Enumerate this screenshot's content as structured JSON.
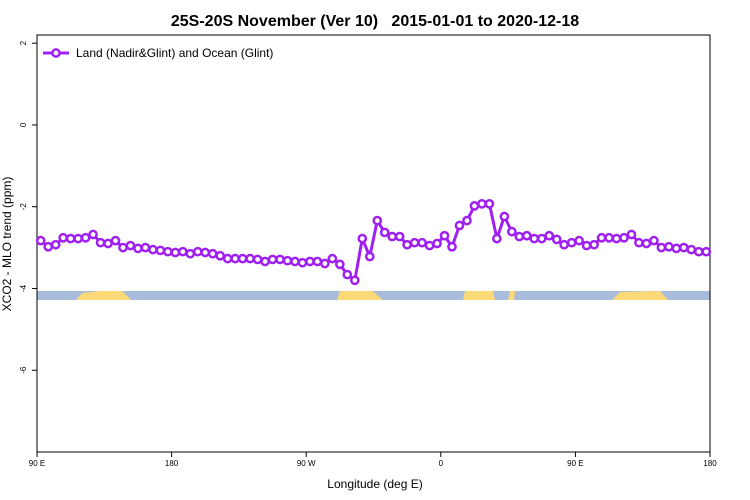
{
  "chart_data": {
    "type": "line",
    "title": "25S-20S November (Ver 10)   2015-01-01 to 2020-12-18",
    "x_label": "Longitude (deg E)",
    "y_label": "XCO2 - MLO trend (ppm)",
    "x": [
      92.5,
      97.5,
      102.5,
      107.5,
      112.5,
      117.5,
      122.5,
      127.5,
      132.5,
      137.5,
      142.5,
      147.5,
      152.5,
      157.5,
      162.5,
      167.5,
      172.5,
      177.5,
      182.5,
      187.5,
      192.5,
      197.5,
      202.5,
      207.5,
      212.5,
      217.5,
      222.5,
      227.5,
      232.5,
      237.5,
      242.5,
      247.5,
      252.5,
      257.5,
      262.5,
      267.5,
      272.5,
      277.5,
      282.5,
      287.5,
      292.5,
      297.5,
      302.5,
      307.5,
      312.5,
      317.5,
      322.5,
      327.5,
      332.5,
      337.5,
      342.5,
      347.5,
      352.5,
      357.5,
      362.5,
      367.5,
      372.5,
      377.5,
      382.5,
      387.5,
      392.5,
      397.5,
      402.5,
      407.5,
      412.5,
      417.5,
      422.5,
      427.5,
      432.5,
      437.5,
      442.5,
      447.5,
      452.5,
      457.5,
      462.5,
      467.5,
      472.5,
      477.5,
      482.5,
      487.5,
      492.5,
      497.5,
      502.5,
      507.5,
      512.5,
      517.5,
      522.5,
      527.5,
      532.5,
      537.5
    ],
    "series": [
      {
        "name": "Land (Nadir&Glint) and Ocean (Glint)",
        "color": "#a020f0",
        "values": [
          -2.83,
          -2.98,
          -2.93,
          -2.76,
          -2.78,
          -2.78,
          -2.76,
          -2.68,
          -2.88,
          -2.9,
          -2.83,
          -3.0,
          -2.95,
          -3.02,
          -3.0,
          -3.05,
          -3.07,
          -3.1,
          -3.12,
          -3.1,
          -3.15,
          -3.1,
          -3.12,
          -3.15,
          -3.2,
          -3.27,
          -3.27,
          -3.27,
          -3.27,
          -3.29,
          -3.34,
          -3.29,
          -3.29,
          -3.32,
          -3.34,
          -3.37,
          -3.34,
          -3.34,
          -3.39,
          -3.27,
          -3.41,
          -3.66,
          -3.8,
          -2.78,
          -3.22,
          -2.34,
          -2.63,
          -2.73,
          -2.73,
          -2.93,
          -2.88,
          -2.88,
          -2.95,
          -2.9,
          -2.71,
          -2.98,
          -2.46,
          -2.34,
          -1.98,
          -1.93,
          -1.93,
          -2.78,
          -2.24,
          -2.61,
          -2.73,
          -2.71,
          -2.78,
          -2.78,
          -2.71,
          -2.8,
          -2.93,
          -2.88,
          -2.83,
          -2.95,
          -2.93,
          -2.76,
          -2.76,
          -2.78,
          -2.76,
          -2.68,
          -2.88,
          -2.9,
          -2.83,
          -3.0,
          -2.98,
          -3.02,
          -3.0,
          -3.05,
          -3.1,
          -3.1
        ]
      }
    ],
    "xlim": [
      90,
      540
    ],
    "xticks": [
      {
        "value": 90,
        "label": "90 E"
      },
      180,
      {
        "value": 270,
        "label": "90 W"
      },
      {
        "value": 360,
        "label": "0"
      },
      {
        "value": 450,
        "label": "90 E"
      },
      {
        "value": 540,
        "label": "180"
      }
    ],
    "ylim": [
      -8,
      2.2
    ],
    "yticks": [
      -6,
      -4,
      -2,
      0,
      2
    ],
    "legend": "top-left"
  }
}
